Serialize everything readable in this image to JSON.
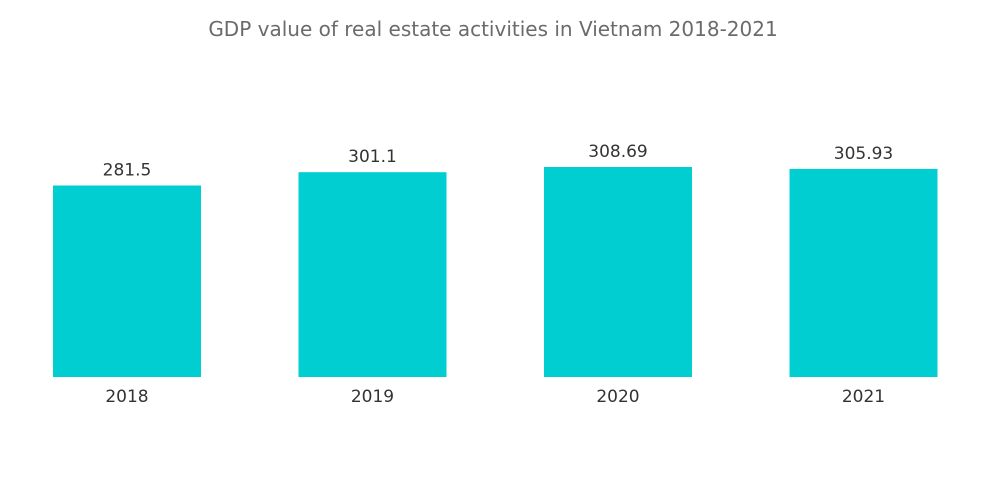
{
  "chart_data": {
    "type": "bar",
    "title": "GDP value of real estate activities in Vietnam 2018-2021",
    "categories": [
      "2018",
      "2019",
      "2020",
      "2021"
    ],
    "values": [
      281.5,
      301.1,
      308.69,
      305.93
    ],
    "data_labels": [
      "281.5",
      "301.1",
      "308.69",
      "305.93"
    ],
    "xlabel": "",
    "ylabel": "",
    "ylim": [
      0,
      308.69
    ],
    "grid": false,
    "legend": "none",
    "bar_color": "#00CED1"
  }
}
